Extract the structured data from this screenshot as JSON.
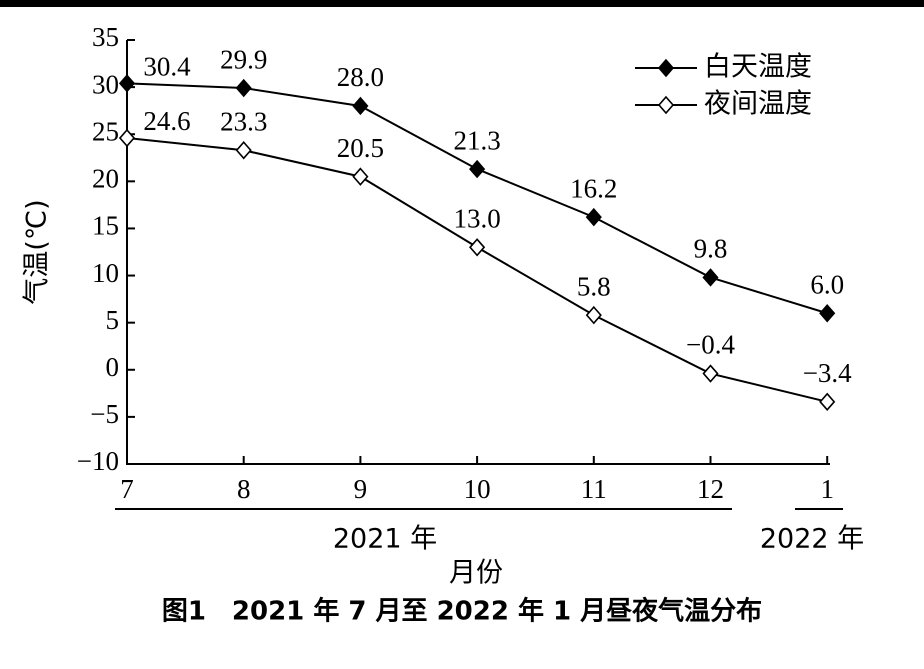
{
  "chart_data": {
    "type": "line",
    "caption": "图1　2021 年 7 月至 2022 年 1 月昼夜气温分布",
    "x_label": "月份",
    "y_label": "气温(℃)",
    "categories": [
      "7",
      "8",
      "9",
      "10",
      "11",
      "12",
      "1"
    ],
    "x_groups": [
      "2021 年",
      "2022 年"
    ],
    "series": [
      {
        "name": "白天温度",
        "color": "#000000",
        "marker": "filled-diamond",
        "values": [
          30.4,
          29.9,
          28.0,
          21.3,
          16.2,
          9.8,
          6.0
        ],
        "value_labels": [
          "30.4",
          "29.9",
          "28.0",
          "21.3",
          "16.2",
          "9.8",
          "6.0"
        ]
      },
      {
        "name": "夜间温度",
        "color": "#000000",
        "marker": "open-diamond",
        "values": [
          24.6,
          23.3,
          20.5,
          13.0,
          5.8,
          -0.4,
          -3.4
        ],
        "value_labels": [
          "24.6",
          "23.3",
          "20.5",
          "13.0",
          "5.8",
          "−0.4",
          "−3.4"
        ]
      }
    ],
    "ylim": [
      -10,
      35
    ],
    "yticks": [
      {
        "value": -10,
        "label": "−10"
      },
      {
        "value": -5,
        "label": "−5"
      },
      0,
      5,
      10,
      15,
      20,
      25,
      30,
      35
    ],
    "legend": "top-right",
    "grid": false
  }
}
